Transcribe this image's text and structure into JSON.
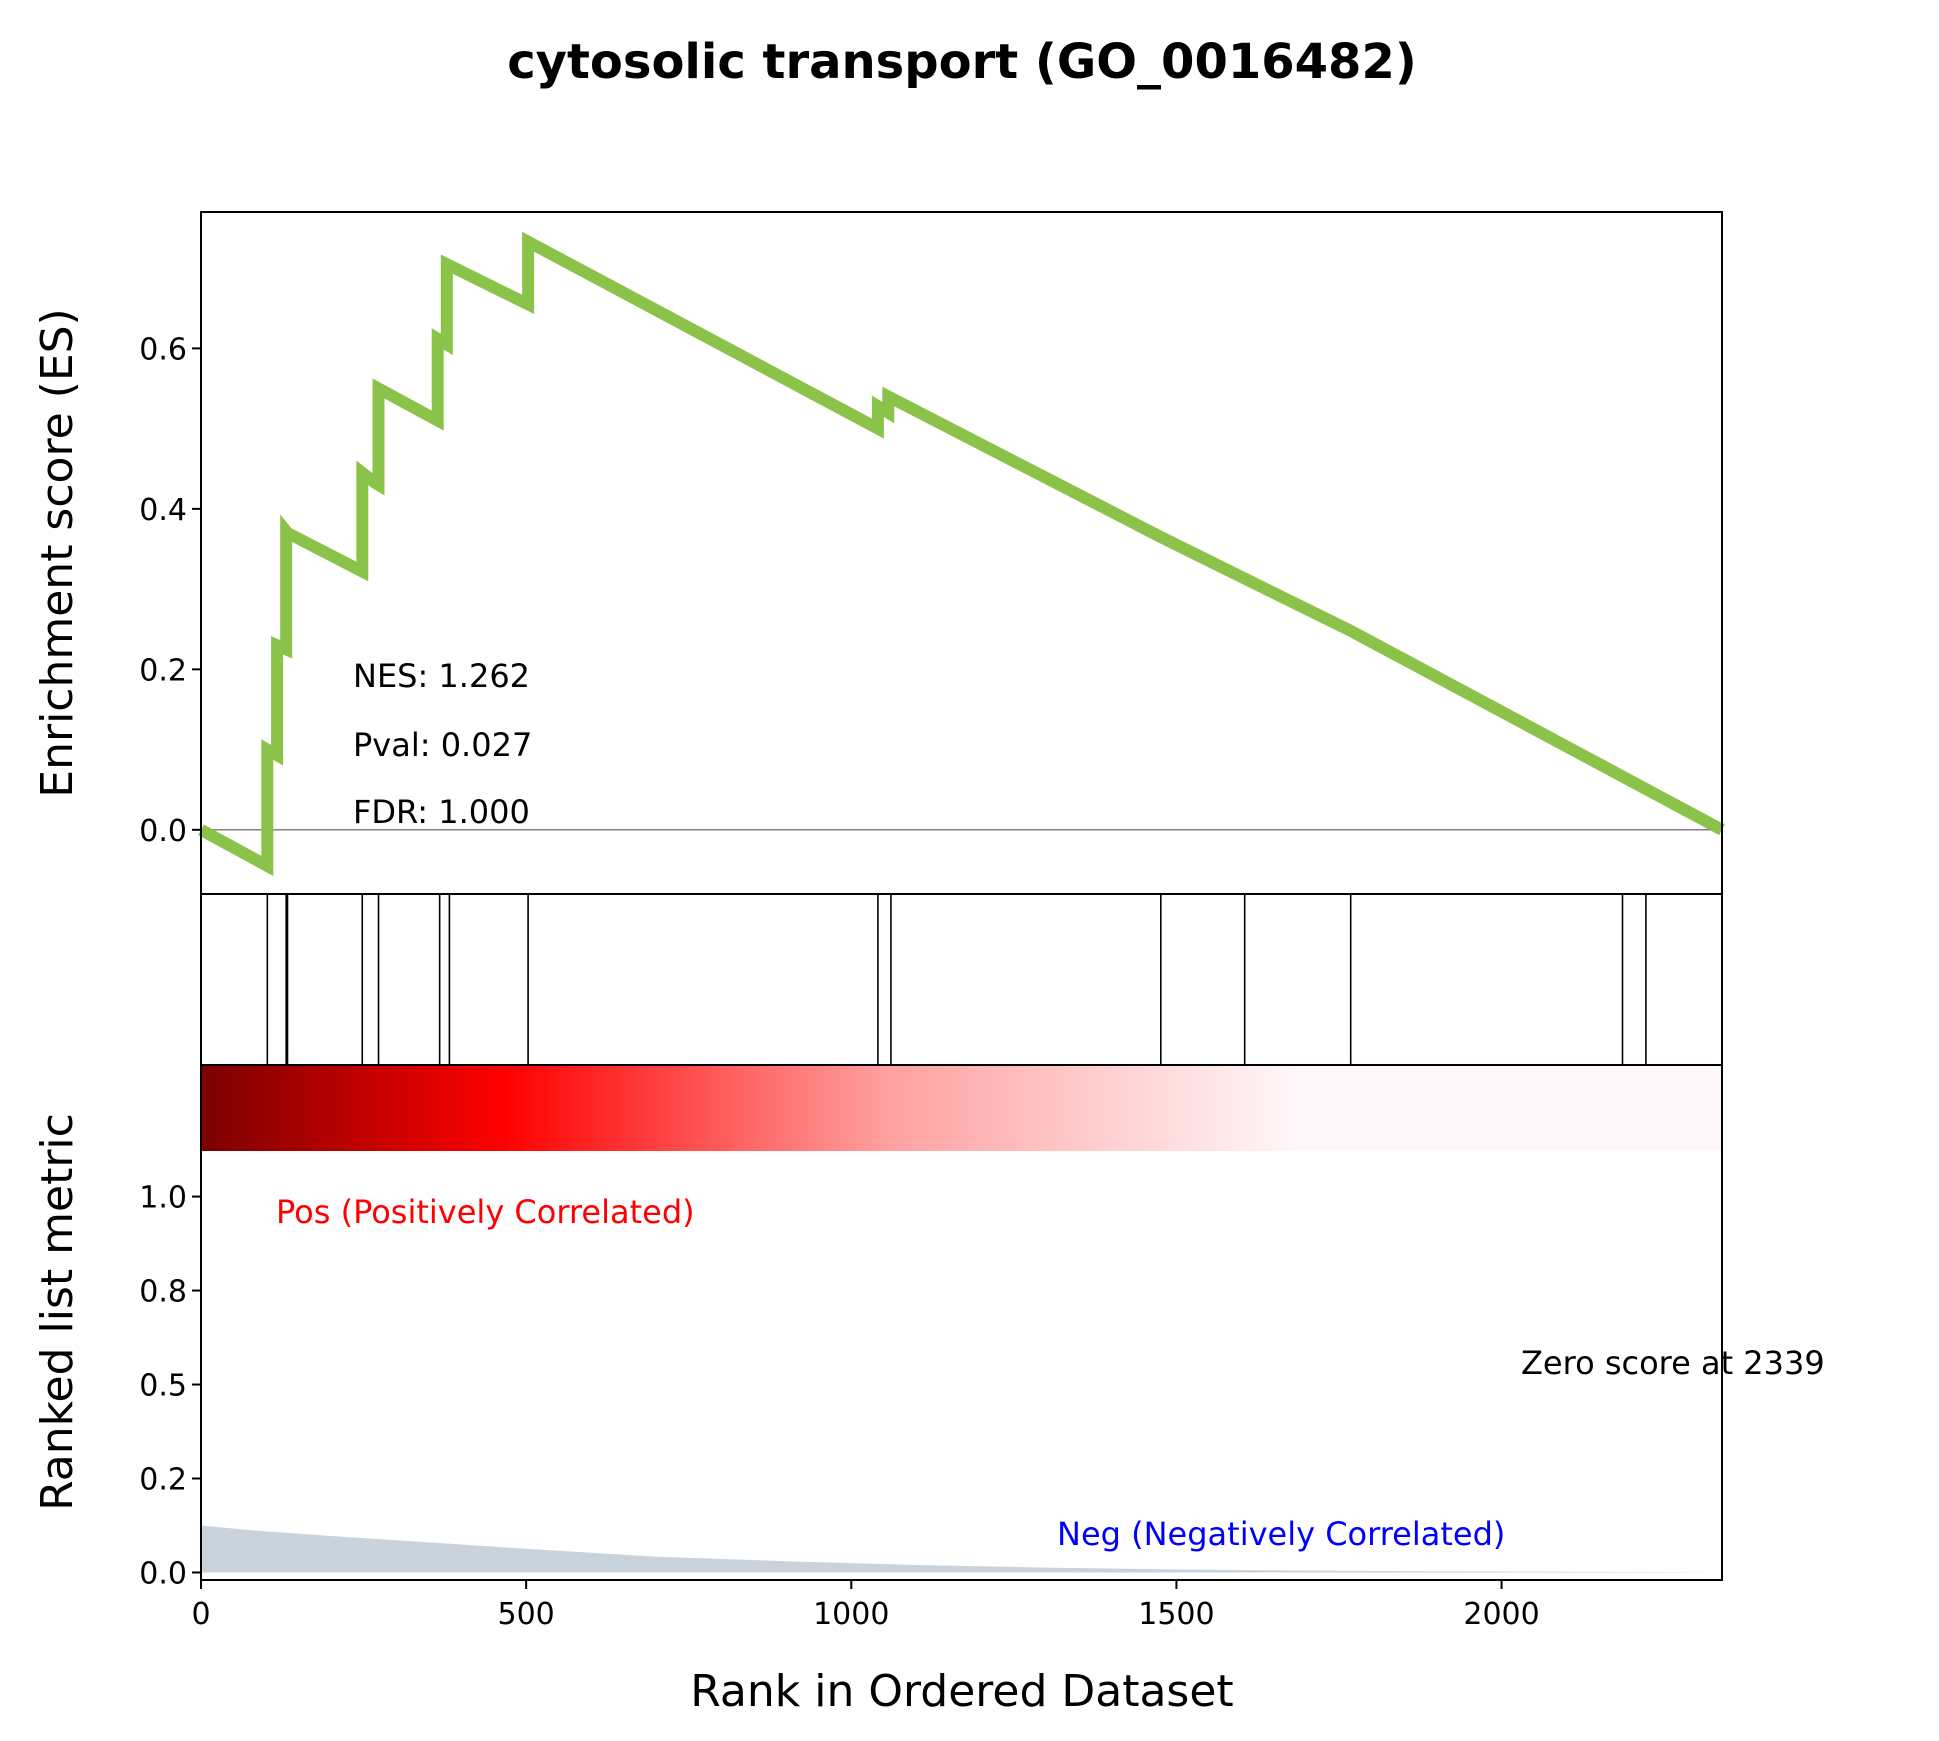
{
  "figure": {
    "title": "cytosolic transport (GO_0016482)",
    "nes_label": "NES: 1.262",
    "pval_label": "Pval: 0.027",
    "fdr_label": "FDR: 1.000",
    "pos_label": "Pos (Positively Correlated)",
    "neg_label": "Neg (Negatively Correlated)",
    "zero_label": "Zero score at 2339",
    "es_ylabel": "Enrichment score (ES)",
    "rank_ylabel": "Ranked list metric",
    "xlabel": "Rank in Ordered Dataset"
  },
  "colors": {
    "es_line": "#8bc34a",
    "baseline": "#808080",
    "hit": "#000000",
    "metric_fill": "#c8d3dc",
    "pos": "#ff0000",
    "neg": "#0000ff",
    "heat_dark": "#7a0000",
    "heat_red": "#ff0000",
    "heat_light": "#fff7f9"
  },
  "chart_data": [
    {
      "type": "line",
      "name": "running enrichment score",
      "xlim": [
        0,
        2339
      ],
      "ylim": [
        -0.08,
        0.77
      ],
      "y_ticks": [
        0.0,
        0.2,
        0.4,
        0.6
      ],
      "y_tick_labels": [
        "0.0",
        "0.2",
        "0.4",
        "0.6"
      ],
      "x": [
        0,
        102,
        102,
        117,
        117,
        131,
        131,
        133,
        133,
        248,
        248,
        267,
        267,
        273,
        273,
        364,
        364,
        378,
        378,
        503,
        503,
        1041,
        1041,
        1057,
        1057,
        1476,
        1608,
        1768,
        2339
      ],
      "y": [
        0.0,
        -0.045,
        0.1,
        0.093,
        0.23,
        0.225,
        0.372,
        0.37,
        0.37,
        0.322,
        0.445,
        0.433,
        0.433,
        0.43,
        0.55,
        0.51,
        0.612,
        0.605,
        0.705,
        0.655,
        0.733,
        0.5,
        0.528,
        0.52,
        0.54,
        0.365,
        0.312,
        0.248,
        0.0
      ],
      "annotations": [
        "NES: 1.262",
        "Pval: 0.027",
        "FDR: 1.000"
      ]
    },
    {
      "type": "hits",
      "name": "gene set hits",
      "xlim": [
        0,
        2339
      ],
      "x": [
        102,
        131,
        133,
        248,
        273,
        367,
        382,
        503,
        1041,
        1061,
        1476,
        1605,
        1768,
        2186,
        2222
      ]
    },
    {
      "type": "area",
      "name": "ranked list metric",
      "xlim": [
        0,
        2339
      ],
      "ylim": [
        -0.02,
        1.35
      ],
      "y_ticks": [
        0.0,
        0.25,
        0.5,
        0.75,
        1.0
      ],
      "y_tick_labels": [
        "0.0",
        "0.2",
        "0.5",
        "0.8",
        "1.0"
      ],
      "x": [
        0,
        80,
        200,
        350,
        500,
        700,
        900,
        1100,
        1300,
        1500,
        1700,
        1900,
        2100,
        2339
      ],
      "y": [
        0.125,
        0.112,
        0.097,
        0.08,
        0.063,
        0.042,
        0.03,
        0.02,
        0.013,
        0.008,
        0.005,
        0.003,
        0.002,
        0.0
      ],
      "x_ticks": [
        0,
        500,
        1000,
        1500,
        2000
      ],
      "x_tick_labels": [
        "0",
        "500",
        "1000",
        "1500",
        "2000"
      ],
      "xlabel": "Rank in Ordered Dataset",
      "annotations": [
        "Pos (Positively Correlated)",
        "Neg (Negatively Correlated)",
        "Zero score at 2339"
      ]
    }
  ]
}
